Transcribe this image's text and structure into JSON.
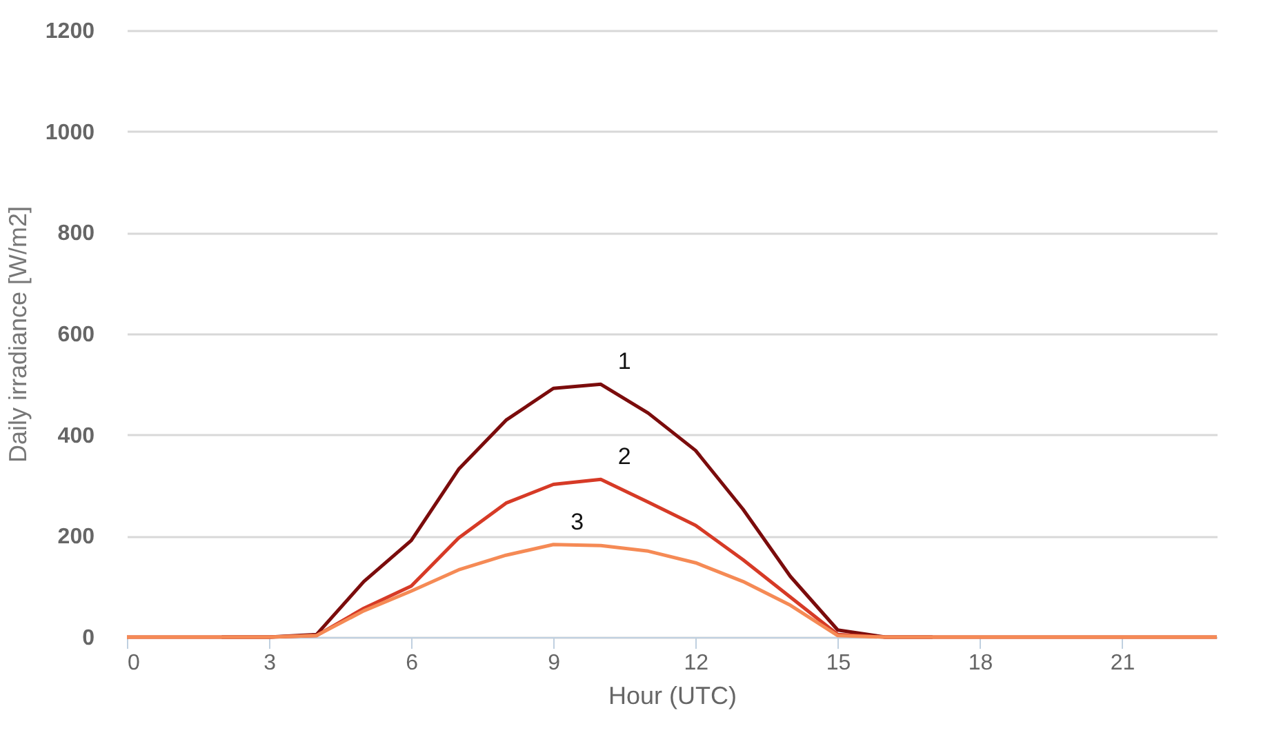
{
  "chart_data": {
    "type": "line",
    "xlabel": "Hour (UTC)",
    "ylabel": "Daily irradiance [W/m2]",
    "x": [
      0,
      1,
      2,
      3,
      4,
      5,
      6,
      7,
      8,
      9,
      10,
      11,
      12,
      13,
      14,
      15,
      16,
      17,
      18,
      19,
      20,
      21,
      22,
      23
    ],
    "series": [
      {
        "color": "#7b0c0c",
        "values": [
          null,
          null,
          0,
          0,
          5,
          110,
          191,
          332,
          429,
          492,
          500,
          443,
          369,
          253,
          120,
          14,
          0,
          0,
          null,
          null,
          null,
          null,
          null,
          null
        ]
      },
      {
        "color": "#d63a26",
        "values": [
          0,
          0,
          0,
          0,
          3,
          57,
          101,
          196,
          265,
          302,
          312,
          267,
          221,
          153,
          79,
          5,
          0,
          0,
          0,
          0,
          0,
          0,
          0,
          0
        ]
      },
      {
        "color": "#f58a55",
        "values": [
          0,
          0,
          0,
          0,
          3,
          52,
          91,
          133,
          162,
          183,
          181,
          170,
          147,
          110,
          63,
          3,
          0,
          0,
          0,
          0,
          0,
          0,
          0,
          0
        ]
      }
    ],
    "annotations": [
      "1",
      "2",
      "3"
    ],
    "xlim": [
      0,
      23
    ],
    "xticks": [
      0,
      3,
      6,
      9,
      12,
      15,
      18,
      21
    ],
    "ylim": [
      0,
      1200
    ],
    "yticks": [
      0,
      200,
      400,
      600,
      800,
      1000,
      1200
    ],
    "grid": "y",
    "legend": false,
    "marker": "none",
    "line_style": "solid"
  }
}
